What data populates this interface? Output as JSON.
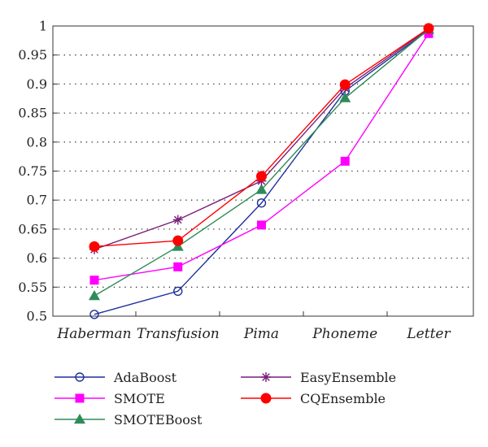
{
  "chart_data": {
    "type": "line",
    "categories": [
      "Haberman",
      "Transfusion",
      "Pima",
      "Phoneme",
      "Letter"
    ],
    "ylim": [
      0.5,
      1
    ],
    "yticks": [
      "0.5",
      "0.55",
      "0.6",
      "0.65",
      "0.7",
      "0.75",
      "0.8",
      "0.85",
      "0.9",
      "0.95",
      "1"
    ],
    "grid": "horizontal dotted",
    "legend_position": "bottom",
    "series": [
      {
        "name": "AdaBoost",
        "values": [
          0.503,
          0.543,
          0.695,
          0.888,
          0.993
        ],
        "color": "#1f2f9c",
        "marker": "circle-open"
      },
      {
        "name": "SMOTE",
        "values": [
          0.562,
          0.585,
          0.657,
          0.767,
          0.987
        ],
        "color": "#ff00ff",
        "marker": "square"
      },
      {
        "name": "SMOTEBoost",
        "values": [
          0.535,
          0.62,
          0.718,
          0.876,
          0.994
        ],
        "color": "#2e8b57",
        "marker": "triangle"
      },
      {
        "name": "EasyEnsemble",
        "values": [
          0.615,
          0.666,
          0.733,
          0.893,
          0.995
        ],
        "color": "#7a1f7a",
        "marker": "star"
      },
      {
        "name": "CQEnsemble",
        "values": [
          0.62,
          0.63,
          0.741,
          0.899,
          0.996
        ],
        "color": "#ff0000",
        "marker": "circle-filled"
      }
    ]
  }
}
